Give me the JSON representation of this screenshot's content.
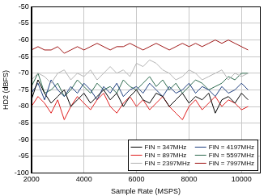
{
  "chart_data": {
    "type": "line",
    "x_label": "Sample Rate (MSPS)",
    "y_label": "HD2 (dBFS)",
    "x": [
      2000,
      2250,
      2500,
      2750,
      3000,
      3250,
      3500,
      3750,
      4000,
      4250,
      4500,
      4750,
      5000,
      5250,
      5500,
      5750,
      6000,
      6250,
      6500,
      6750,
      7000,
      7250,
      7500,
      7750,
      8000,
      8250,
      8500,
      8750,
      9000,
      9250,
      9500,
      9750,
      10000,
      10250
    ],
    "xlim": [
      2000,
      10700
    ],
    "xticks": [
      2000,
      4000,
      6000,
      8000,
      10000
    ],
    "ylim": [
      -100,
      -50
    ],
    "yticks": [
      -100,
      -95,
      -90,
      -85,
      -80,
      -75,
      -70,
      -65,
      -60,
      -55,
      -50
    ],
    "grid": true,
    "legend": "lower right",
    "marker": "none",
    "line_style": "solid",
    "series": [
      {
        "name": "FIN = 347MHz",
        "color": "#000000",
        "values": [
          -78,
          -72,
          -76,
          -79,
          -77,
          -75,
          -80,
          -78,
          -76,
          -79,
          -77,
          -75,
          -78,
          -76,
          -80,
          -77,
          -75,
          -78,
          -79,
          -76,
          -77,
          -80,
          -78,
          -76,
          -79,
          -77,
          -78,
          -76,
          -82,
          -78,
          -77,
          -79,
          -76,
          -78
        ]
      },
      {
        "name": "FIN = 897MHz",
        "color": "#e02020",
        "values": [
          -80,
          -77,
          -79,
          -82,
          -78,
          -84,
          -80,
          -77,
          -79,
          -81,
          -78,
          -76,
          -80,
          -82,
          -79,
          -77,
          -80,
          -78,
          -81,
          -79,
          -77,
          -80,
          -82,
          -84,
          -80,
          -78,
          -81,
          -79,
          -77,
          -80,
          -78,
          -79,
          -81,
          -80
        ]
      },
      {
        "name": "FIN = 2397MHz",
        "color": "#b4b4b4",
        "values": [
          -72,
          -70,
          -71,
          -73,
          -70,
          -69,
          -72,
          -70,
          -71,
          -69,
          -72,
          -70,
          -68,
          -70,
          -69,
          -71,
          -67,
          -68,
          -66,
          -67,
          -69,
          -70,
          -72,
          -71,
          -69,
          -70,
          -72,
          -71,
          -70,
          -69,
          -72,
          -70,
          -71,
          -70
        ]
      },
      {
        "name": "FIN = 4197MHz",
        "color": "#1f3f7f",
        "values": [
          -76,
          -73,
          -78,
          -72,
          -75,
          -77,
          -74,
          -76,
          -73,
          -75,
          -78,
          -74,
          -76,
          -73,
          -77,
          -75,
          -74,
          -76,
          -73,
          -75,
          -77,
          -74,
          -76,
          -75,
          -73,
          -76,
          -74,
          -75,
          -77,
          -74,
          -76,
          -75,
          -73,
          -75
        ]
      },
      {
        "name": "FIN = 5597MHz",
        "color": "#2e6b4f",
        "values": [
          -74,
          -70,
          -76,
          -75,
          -73,
          -77,
          -75,
          -72,
          -74,
          -76,
          -73,
          -75,
          -74,
          -76,
          -72,
          -74,
          -75,
          -73,
          -71,
          -74,
          -72,
          -75,
          -73,
          -76,
          -74,
          -72,
          -73,
          -75,
          -74,
          -73,
          -71,
          -72,
          -70,
          -70
        ]
      },
      {
        "name": "FIN = 7997MHz",
        "color": "#a01818",
        "values": [
          -63,
          -62,
          -63,
          -63,
          -62,
          -64,
          -63,
          -62,
          -63,
          -62,
          -61,
          -62,
          -63,
          -62,
          -62,
          -61,
          -62,
          -63,
          -62,
          -61,
          -62,
          -63,
          -62,
          -61,
          -62,
          -61,
          -62,
          -61,
          -60,
          -61,
          -60,
          -61,
          -62,
          -63
        ]
      }
    ]
  }
}
